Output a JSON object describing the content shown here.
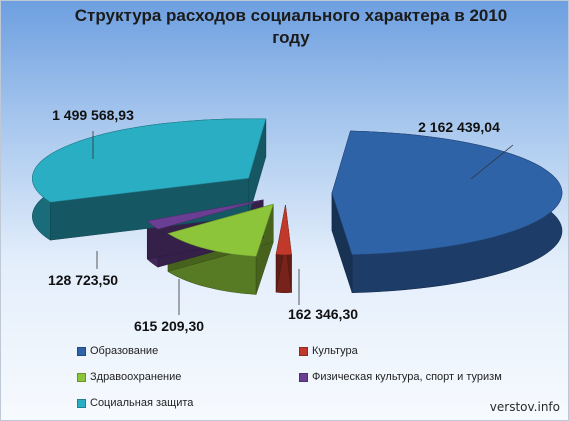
{
  "chart_data": {
    "type": "pie",
    "title": "Структура расходов социального характера в 2010 году",
    "categories": [
      "Образование",
      "Культура",
      "Здравоохранение",
      "Физическая культура, спорт и туризм",
      "Социальная защита"
    ],
    "values": [
      2162439.04,
      162346.3,
      615209.3,
      128723.5,
      1499568.93
    ],
    "value_labels": [
      "2 162 439,04",
      "162 346,30",
      "615 209,30",
      "128 723,50",
      "1 499 568,93"
    ],
    "colors": [
      "#2f63a8",
      "#c0392b",
      "#8cc43a",
      "#6a3f93",
      "#2aaec4"
    ],
    "exploded": true,
    "legend_position": "bottom"
  },
  "watermark": "verstov.info"
}
